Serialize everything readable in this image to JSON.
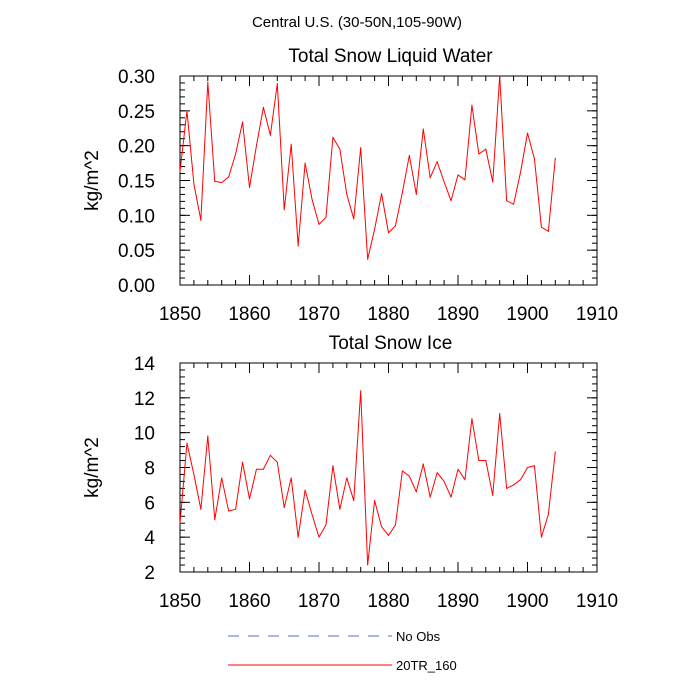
{
  "figure_title": "Central U.S. (30-50N,105-90W)",
  "colors": {
    "series_20tr": "#ff0000",
    "series_noobs": "#5a6ec8",
    "axes": "#000000"
  },
  "legend": {
    "entries": [
      {
        "name": "No Obs",
        "style": "dashed",
        "color": "#5a6ec8"
      },
      {
        "name": "20TR_160",
        "style": "solid",
        "color": "#ff0000"
      }
    ]
  },
  "chart_data": [
    {
      "type": "line",
      "title": "Total Snow Liquid Water",
      "xlabel": "",
      "ylabel": "kg/m^2",
      "xlim": [
        1850,
        1910
      ],
      "ylim": [
        0.0,
        0.3
      ],
      "xticks": [
        1850,
        1860,
        1870,
        1880,
        1890,
        1900,
        1910
      ],
      "xticklabels": [
        "1850",
        "1860",
        "1870",
        "1880",
        "1890",
        "1900",
        "1910"
      ],
      "yticks": [
        0.0,
        0.05,
        0.1,
        0.15,
        0.2,
        0.25,
        0.3
      ],
      "yticklabels": [
        "0.00",
        "0.05",
        "0.10",
        "0.15",
        "0.20",
        "0.25",
        "0.30"
      ],
      "series": [
        {
          "name": "20TR_160",
          "x": [
            1850,
            1851,
            1852,
            1853,
            1854,
            1855,
            1856,
            1857,
            1858,
            1859,
            1860,
            1861,
            1862,
            1863,
            1864,
            1865,
            1866,
            1867,
            1868,
            1869,
            1870,
            1871,
            1872,
            1873,
            1874,
            1875,
            1876,
            1877,
            1878,
            1879,
            1880,
            1881,
            1882,
            1883,
            1884,
            1885,
            1886,
            1887,
            1888,
            1889,
            1890,
            1891,
            1892,
            1893,
            1894,
            1895,
            1896,
            1897,
            1898,
            1899,
            1900,
            1901,
            1902,
            1903,
            1904
          ],
          "values": [
            0.163,
            0.25,
            0.145,
            0.093,
            0.291,
            0.149,
            0.147,
            0.155,
            0.188,
            0.234,
            0.14,
            0.2,
            0.255,
            0.215,
            0.289,
            0.108,
            0.202,
            0.056,
            0.175,
            0.123,
            0.087,
            0.097,
            0.212,
            0.195,
            0.13,
            0.095,
            0.197,
            0.037,
            0.08,
            0.131,
            0.075,
            0.085,
            0.133,
            0.186,
            0.13,
            0.224,
            0.154,
            0.177,
            0.148,
            0.121,
            0.158,
            0.151,
            0.258,
            0.188,
            0.195,
            0.148,
            0.3,
            0.121,
            0.116,
            0.162,
            0.218,
            0.181,
            0.083,
            0.077,
            0.182
          ]
        }
      ]
    },
    {
      "type": "line",
      "title": "Total Snow Ice",
      "xlabel": "",
      "ylabel": "kg/m^2",
      "xlim": [
        1850,
        1910
      ],
      "ylim": [
        2,
        14
      ],
      "xticks": [
        1850,
        1860,
        1870,
        1880,
        1890,
        1900,
        1910
      ],
      "xticklabels": [
        "1850",
        "1860",
        "1870",
        "1880",
        "1890",
        "1900",
        "1910"
      ],
      "yticks": [
        2,
        4,
        6,
        8,
        10,
        12,
        14
      ],
      "yticklabels": [
        "2",
        "4",
        "6",
        "8",
        "10",
        "12",
        "14"
      ],
      "series": [
        {
          "name": "20TR_160",
          "x": [
            1850,
            1851,
            1852,
            1853,
            1854,
            1855,
            1856,
            1857,
            1858,
            1859,
            1860,
            1861,
            1862,
            1863,
            1864,
            1865,
            1866,
            1867,
            1868,
            1869,
            1870,
            1871,
            1872,
            1873,
            1874,
            1875,
            1876,
            1877,
            1878,
            1879,
            1880,
            1881,
            1882,
            1883,
            1884,
            1885,
            1886,
            1887,
            1888,
            1889,
            1890,
            1891,
            1892,
            1893,
            1894,
            1895,
            1896,
            1897,
            1898,
            1899,
            1900,
            1901,
            1902,
            1903,
            1904
          ],
          "values": [
            4.8,
            9.4,
            7.6,
            5.6,
            9.8,
            5.0,
            7.4,
            5.5,
            5.6,
            8.3,
            6.2,
            7.9,
            7.9,
            8.7,
            8.3,
            5.7,
            7.4,
            4.0,
            6.7,
            5.3,
            4.0,
            4.7,
            8.1,
            5.6,
            7.4,
            6.1,
            12.4,
            2.4,
            6.1,
            4.6,
            4.1,
            4.7,
            7.8,
            7.5,
            6.6,
            8.2,
            6.3,
            7.7,
            7.2,
            6.3,
            7.9,
            7.3,
            10.8,
            8.4,
            8.4,
            6.4,
            11.1,
            6.8,
            7.0,
            7.3,
            8.0,
            8.1,
            4.0,
            5.3,
            8.9
          ]
        }
      ]
    }
  ]
}
